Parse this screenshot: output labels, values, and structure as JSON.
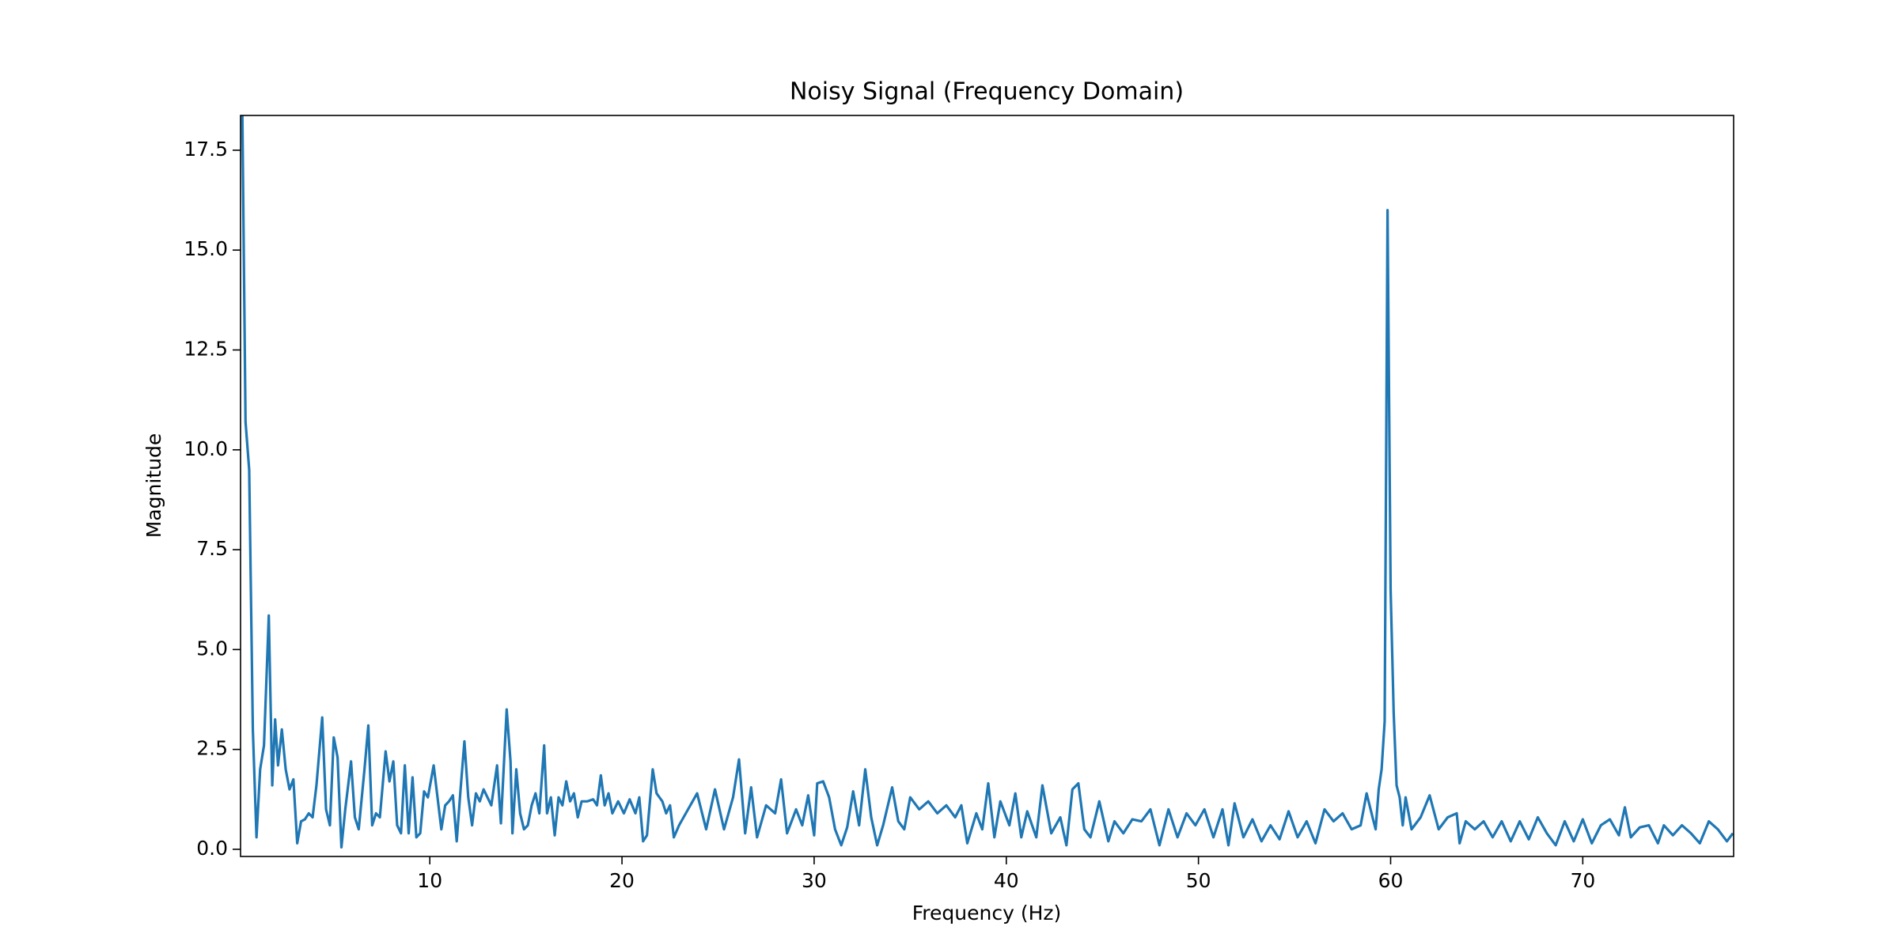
{
  "chart_data": {
    "type": "line",
    "title": "Noisy Signal (Frequency Domain)",
    "xlabel": "Frequency (Hz)",
    "ylabel": "Magnitude",
    "color": "#1f77b4",
    "x": [
      0.21,
      0.41,
      0.6,
      0.79,
      0.98,
      1.17,
      1.37,
      1.62,
      1.8,
      1.95,
      2.1,
      2.3,
      2.5,
      2.7,
      2.9,
      3.1,
      3.3,
      3.5,
      3.7,
      3.9,
      4.1,
      4.4,
      4.6,
      4.8,
      5.0,
      5.2,
      5.4,
      5.6,
      5.9,
      6.1,
      6.3,
      6.6,
      6.8,
      7.0,
      7.2,
      7.4,
      7.7,
      7.9,
      8.1,
      8.3,
      8.5,
      8.7,
      8.9,
      9.1,
      9.3,
      9.5,
      9.7,
      9.9,
      10.2,
      10.4,
      10.6,
      10.8,
      11.0,
      11.2,
      11.4,
      11.6,
      11.8,
      12.0,
      12.2,
      12.4,
      12.6,
      12.8,
      13.0,
      13.2,
      13.5,
      13.7,
      14.0,
      14.2,
      14.3,
      14.5,
      14.7,
      14.9,
      15.1,
      15.3,
      15.5,
      15.7,
      15.95,
      16.1,
      16.3,
      16.5,
      16.7,
      16.9,
      17.1,
      17.3,
      17.5,
      17.7,
      17.9,
      18.2,
      18.5,
      18.7,
      18.9,
      19.1,
      19.3,
      19.5,
      19.8,
      20.1,
      20.4,
      20.7,
      20.9,
      21.1,
      21.3,
      21.6,
      21.8,
      22.1,
      22.3,
      22.5,
      22.7,
      22.97,
      23.44,
      23.91,
      24.38,
      24.84,
      25.31,
      25.78,
      26.09,
      26.41,
      26.72,
      27.03,
      27.5,
      27.97,
      28.28,
      28.59,
      29.06,
      29.38,
      29.69,
      30.0,
      30.16,
      30.47,
      30.78,
      31.09,
      31.41,
      31.72,
      32.03,
      32.34,
      32.66,
      32.97,
      33.28,
      33.59,
      34.06,
      34.38,
      34.69,
      35.0,
      35.47,
      35.94,
      36.41,
      36.88,
      37.34,
      37.66,
      37.97,
      38.44,
      38.75,
      39.06,
      39.38,
      39.69,
      40.16,
      40.47,
      40.78,
      41.09,
      41.56,
      41.88,
      42.34,
      42.81,
      43.13,
      43.44,
      43.75,
      44.06,
      44.38,
      44.84,
      45.31,
      45.63,
      46.09,
      46.56,
      47.03,
      47.5,
      47.97,
      48.44,
      48.91,
      49.38,
      49.84,
      50.31,
      50.78,
      51.25,
      51.56,
      51.88,
      52.34,
      52.81,
      53.28,
      53.75,
      54.22,
      54.69,
      55.16,
      55.63,
      56.09,
      56.56,
      57.03,
      57.5,
      57.97,
      58.44,
      58.75,
      59.06,
      59.22,
      59.38,
      59.53,
      59.69,
      59.84,
      60.0,
      60.16,
      60.31,
      60.47,
      60.63,
      60.78,
      61.09,
      61.56,
      62.03,
      62.5,
      62.97,
      63.44,
      63.59,
      63.91,
      64.38,
      64.84,
      65.31,
      65.78,
      66.25,
      66.72,
      67.19,
      67.66,
      68.13,
      68.59,
      69.06,
      69.53,
      70.0,
      70.47,
      70.94,
      71.41,
      71.88,
      72.19,
      72.5,
      72.97,
      73.44,
      73.91,
      74.22,
      74.69,
      75.16,
      75.63,
      76.09,
      76.56,
      77.03,
      77.5,
      77.81
    ],
    "values": [
      20,
      10.7,
      9.5,
      3.0,
      0.3,
      2.0,
      2.6,
      5.85,
      1.6,
      3.25,
      2.1,
      3.0,
      2.0,
      1.5,
      1.75,
      0.15,
      0.7,
      0.75,
      0.9,
      0.8,
      1.6,
      3.3,
      1.0,
      0.6,
      2.8,
      2.3,
      0.05,
      1.0,
      2.2,
      0.8,
      0.5,
      2.0,
      3.1,
      0.6,
      0.9,
      0.8,
      2.45,
      1.7,
      2.2,
      0.6,
      0.4,
      2.1,
      0.4,
      1.8,
      0.3,
      0.4,
      1.45,
      1.3,
      2.1,
      1.3,
      0.5,
      1.1,
      1.2,
      1.35,
      0.2,
      1.5,
      2.7,
      1.3,
      0.6,
      1.4,
      1.2,
      1.5,
      1.3,
      1.1,
      2.1,
      0.65,
      3.5,
      2.2,
      0.4,
      2.0,
      0.9,
      0.5,
      0.6,
      1.1,
      1.4,
      0.9,
      2.6,
      0.9,
      1.3,
      0.35,
      1.3,
      1.1,
      1.7,
      1.2,
      1.4,
      0.8,
      1.2,
      1.2,
      1.25,
      1.1,
      1.85,
      1.1,
      1.4,
      0.9,
      1.2,
      0.9,
      1.25,
      0.9,
      1.3,
      0.2,
      0.35,
      2.0,
      1.4,
      1.2,
      0.9,
      1.1,
      0.3,
      0.6,
      1.0,
      1.4,
      0.5,
      1.5,
      0.5,
      1.3,
      2.25,
      0.4,
      1.55,
      0.3,
      1.1,
      0.9,
      1.75,
      0.4,
      1.0,
      0.6,
      1.35,
      0.35,
      1.65,
      1.7,
      1.3,
      0.5,
      0.1,
      0.55,
      1.45,
      0.6,
      2.0,
      0.8,
      0.1,
      0.6,
      1.55,
      0.7,
      0.5,
      1.3,
      1.0,
      1.2,
      0.9,
      1.1,
      0.8,
      1.1,
      0.15,
      0.9,
      0.5,
      1.65,
      0.3,
      1.2,
      0.6,
      1.4,
      0.3,
      0.95,
      0.3,
      1.6,
      0.4,
      0.8,
      0.1,
      1.5,
      1.65,
      0.5,
      0.3,
      1.2,
      0.2,
      0.7,
      0.4,
      0.75,
      0.7,
      1.0,
      0.1,
      1.0,
      0.3,
      0.9,
      0.6,
      1.0,
      0.3,
      1.0,
      0.1,
      1.15,
      0.3,
      0.75,
      0.2,
      0.6,
      0.25,
      0.95,
      0.3,
      0.7,
      0.15,
      1.0,
      0.7,
      0.9,
      0.5,
      0.6,
      1.4,
      0.8,
      0.5,
      1.5,
      2.0,
      3.2,
      16.0,
      6.5,
      3.4,
      1.6,
      1.3,
      0.6,
      1.3,
      0.5,
      0.8,
      1.35,
      0.5,
      0.8,
      0.9,
      0.15,
      0.7,
      0.5,
      0.7,
      0.3,
      0.7,
      0.2,
      0.7,
      0.25,
      0.8,
      0.4,
      0.1,
      0.7,
      0.2,
      0.75,
      0.15,
      0.6,
      0.75,
      0.35,
      1.05,
      0.3,
      0.55,
      0.6,
      0.15,
      0.6,
      0.35,
      0.6,
      0.4,
      0.15,
      0.7,
      0.5,
      0.2,
      0.4
    ],
    "xlim": [
      0.15,
      77.85
    ],
    "xticks": [
      10,
      20,
      30,
      40,
      50,
      60,
      70
    ],
    "ylim": [
      -0.18,
      18.37
    ],
    "yticks": [
      {
        "value": 0,
        "label": "0.0"
      },
      {
        "value": 2.5,
        "label": "2.5"
      },
      {
        "value": 5,
        "label": "5.0"
      },
      {
        "value": 7.5,
        "label": "7.5"
      },
      {
        "value": 10,
        "label": "10.0"
      },
      {
        "value": 12.5,
        "label": "12.5"
      },
      {
        "value": 15,
        "label": "15.0"
      },
      {
        "value": 17.5,
        "label": "17.5"
      }
    ],
    "grid": false
  }
}
